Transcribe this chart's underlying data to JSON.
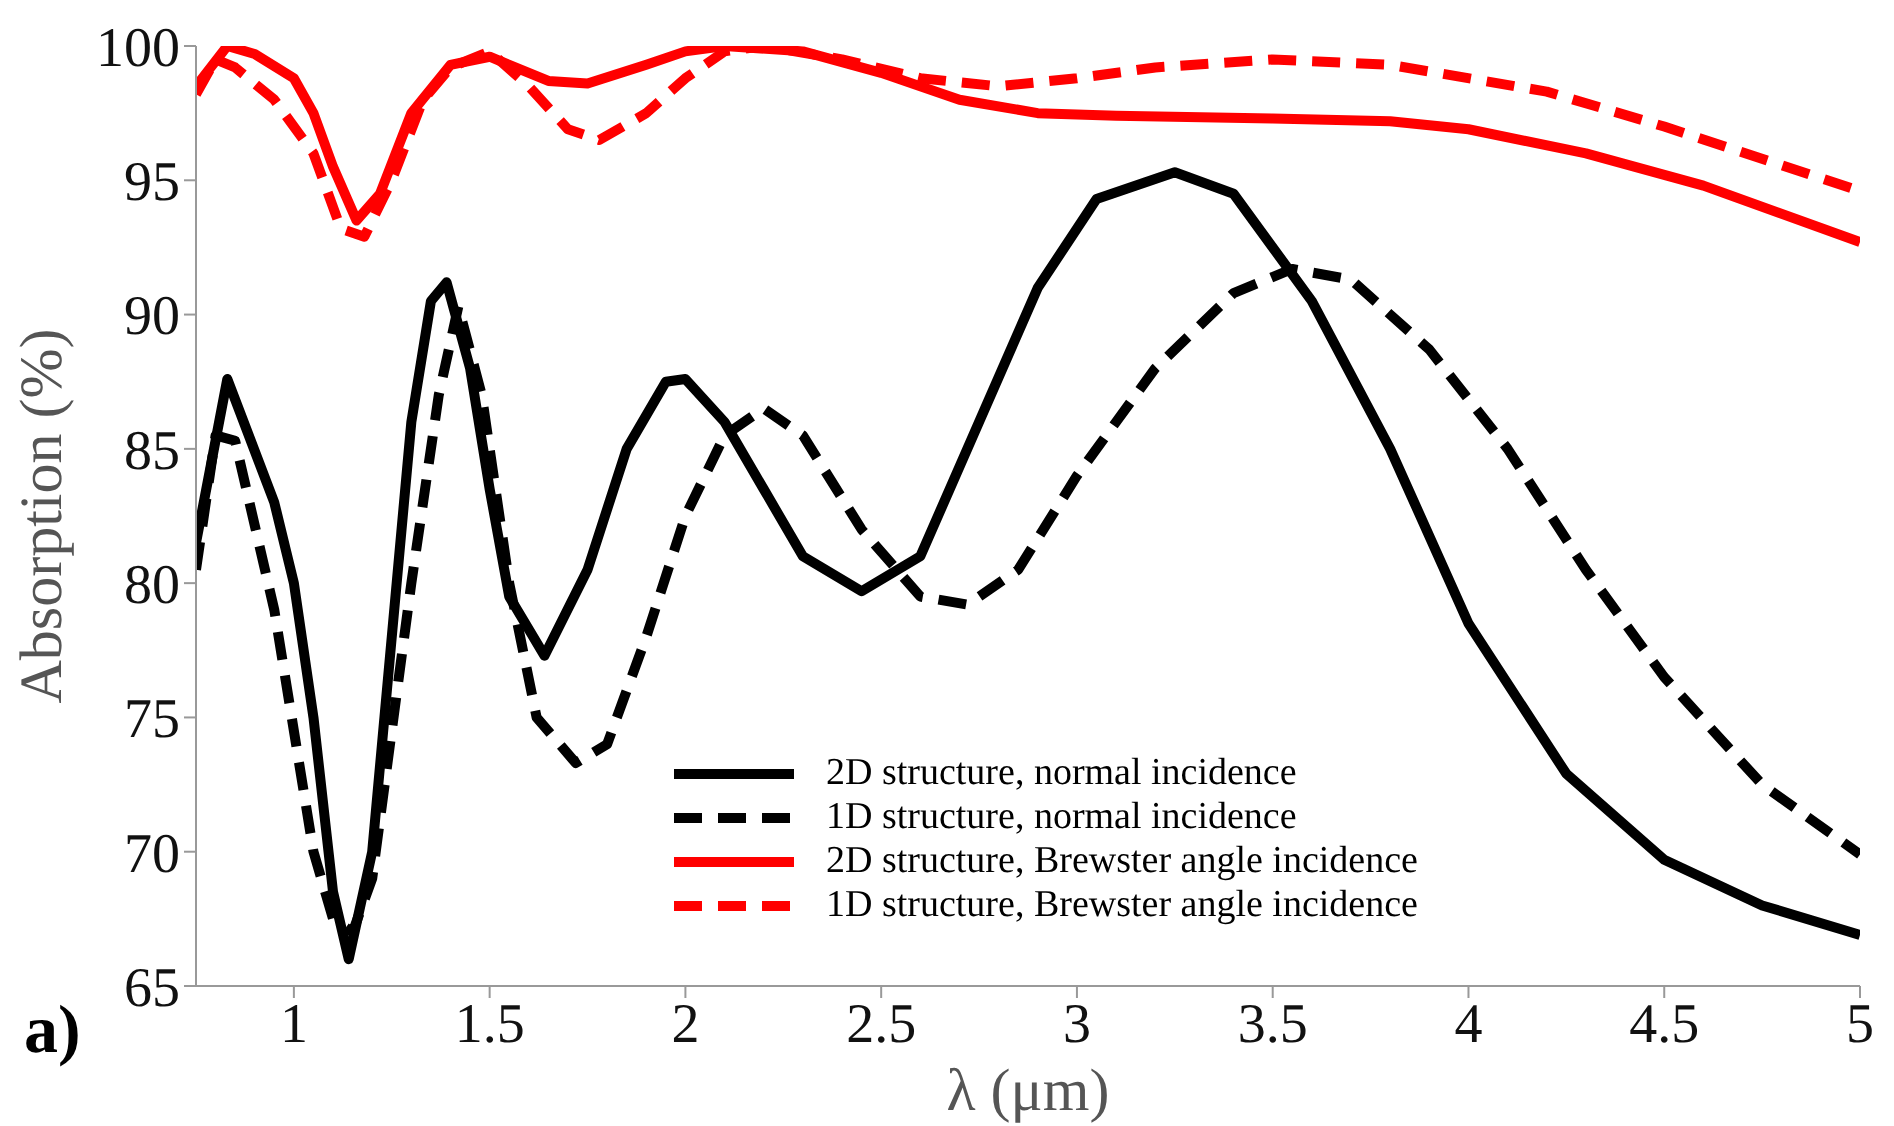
{
  "chart_data": {
    "type": "line",
    "xlabel": "λ (μm)",
    "ylabel": "Absorption (%)",
    "annotations": [
      "a)"
    ],
    "xlim": [
      0.75,
      5
    ],
    "ylim": [
      65,
      100
    ],
    "xticks": [
      1,
      1.5,
      2,
      2.5,
      3,
      3.5,
      4,
      4.5,
      5
    ],
    "yticks": [
      65,
      70,
      75,
      80,
      85,
      90,
      95,
      100
    ],
    "legend": "bottom",
    "grid": false,
    "marker": "none",
    "series": [
      {
        "name": "2D structure, normal incidence",
        "color": "#000000",
        "line_style": "solid",
        "x": [
          0.75,
          0.83,
          0.95,
          1.0,
          1.05,
          1.1,
          1.14,
          1.2,
          1.25,
          1.3,
          1.35,
          1.39,
          1.45,
          1.5,
          1.55,
          1.64,
          1.75,
          1.85,
          1.95,
          2.0,
          2.1,
          2.2,
          2.3,
          2.45,
          2.6,
          2.75,
          2.9,
          3.05,
          3.25,
          3.4,
          3.6,
          3.8,
          4.0,
          4.25,
          4.5,
          4.75,
          5
        ],
        "values": [
          81.5,
          87.6,
          83,
          80,
          75,
          68.5,
          66,
          70,
          78,
          86,
          90.5,
          91.2,
          88,
          83.5,
          79.5,
          77.3,
          80.5,
          85,
          87.5,
          87.6,
          86,
          83.5,
          81,
          79.7,
          81,
          86,
          91,
          94.3,
          95.3,
          94.5,
          90.5,
          85,
          78.5,
          72.9,
          69.7,
          68,
          66.9
        ]
      },
      {
        "name": "1D structure, normal incidence",
        "color": "#000000",
        "line_style": "dashed",
        "x": [
          0.75,
          0.8,
          0.85,
          0.95,
          1.05,
          1.1,
          1.15,
          1.2,
          1.3,
          1.37,
          1.42,
          1.48,
          1.55,
          1.62,
          1.72,
          1.8,
          1.9,
          2.0,
          2.1,
          2.2,
          2.3,
          2.45,
          2.6,
          2.72,
          2.85,
          3.0,
          3.2,
          3.4,
          3.55,
          3.7,
          3.9,
          4.1,
          4.3,
          4.5,
          4.75,
          5
        ],
        "values": [
          80.5,
          85.5,
          85.3,
          79,
          70,
          67.5,
          67,
          69,
          80,
          87,
          90.3,
          87,
          80,
          75,
          73.3,
          74,
          78,
          82.5,
          85.5,
          86.5,
          85.5,
          82,
          79.5,
          79.2,
          80.5,
          84,
          88,
          90.8,
          91.7,
          91.3,
          88.7,
          85,
          80.5,
          76.5,
          72.5,
          69.9
        ]
      },
      {
        "name": "2D structure, Brewster angle incidence",
        "color": "#ff0000",
        "line_style": "solid",
        "x": [
          0.75,
          0.83,
          0.9,
          1.0,
          1.05,
          1.1,
          1.16,
          1.22,
          1.3,
          1.4,
          1.5,
          1.55,
          1.65,
          1.75,
          1.9,
          2.0,
          2.1,
          2.3,
          2.5,
          2.7,
          2.9,
          3.1,
          3.5,
          3.8,
          4.0,
          4.3,
          4.6,
          5
        ],
        "values": [
          98.5,
          100,
          99.7,
          98.8,
          97.5,
          95.5,
          93.5,
          94.5,
          97.5,
          99.3,
          99.6,
          99.3,
          98.7,
          98.6,
          99.3,
          99.8,
          100,
          99.8,
          99,
          98,
          97.5,
          97.4,
          97.3,
          97.2,
          96.9,
          96,
          94.8,
          92.7
        ]
      },
      {
        "name": "1D structure, Brewster angle incidence",
        "color": "#ff0000",
        "line_style": "dashed",
        "x": [
          0.75,
          0.8,
          0.85,
          0.95,
          1.05,
          1.12,
          1.18,
          1.25,
          1.33,
          1.4,
          1.5,
          1.6,
          1.7,
          1.78,
          1.9,
          2.0,
          2.1,
          2.2,
          2.4,
          2.6,
          2.8,
          3.0,
          3.2,
          3.5,
          3.8,
          4.2,
          4.5,
          5
        ],
        "values": [
          98.2,
          99.5,
          99.2,
          98,
          96,
          93.2,
          92.9,
          95,
          98,
          99.2,
          99.8,
          98.5,
          96.9,
          96.5,
          97.5,
          98.8,
          99.8,
          100,
          99.5,
          98.8,
          98.5,
          98.8,
          99.2,
          99.5,
          99.3,
          98.3,
          97,
          94.6
        ]
      }
    ]
  }
}
